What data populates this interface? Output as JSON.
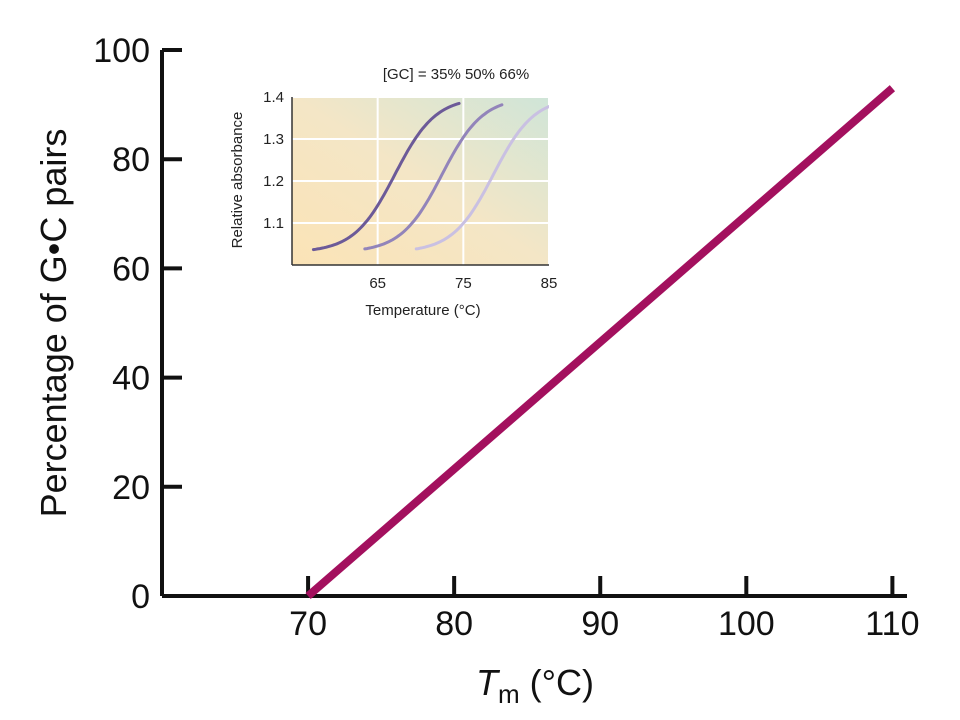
{
  "chart_data": [
    {
      "id": "main",
      "type": "line",
      "title": "",
      "xlabel": {
        "symbol": "T",
        "subscript": "m",
        "units": " (°C)"
      },
      "ylabel": "Percentage of G•C pairs",
      "xlim": [
        60,
        111
      ],
      "ylim": [
        0,
        100
      ],
      "xticks": [
        70,
        80,
        90,
        100,
        110
      ],
      "yticks": [
        0,
        20,
        40,
        60,
        80,
        100
      ],
      "grid": false,
      "series": [
        {
          "color": "#a3105e",
          "points": [
            [
              70,
              0
            ],
            [
              110,
              93
            ]
          ]
        }
      ]
    },
    {
      "id": "inset",
      "type": "line",
      "title": "[GC] = 35% 50% 66%",
      "xlabel": "Temperature (°C)",
      "ylabel": "Relative absorbance",
      "xlim": [
        55,
        85
      ],
      "ylim": [
        1.0,
        1.4
      ],
      "xticks": [
        65,
        75,
        85
      ],
      "yticks": [
        1.1,
        1.2,
        1.3,
        1.4
      ],
      "grid": true,
      "series": [
        {
          "name": "35%",
          "color": "#6c5a98",
          "midpoint": 67,
          "from": 57.5,
          "to": 74.5
        },
        {
          "name": "50%",
          "color": "#9284ba",
          "midpoint": 72.5,
          "from": 63.5,
          "to": 79.5
        },
        {
          "name": "66%",
          "color": "#c9c0e2",
          "midpoint": 78.5,
          "from": 69.5,
          "to": 85
        }
      ]
    }
  ]
}
